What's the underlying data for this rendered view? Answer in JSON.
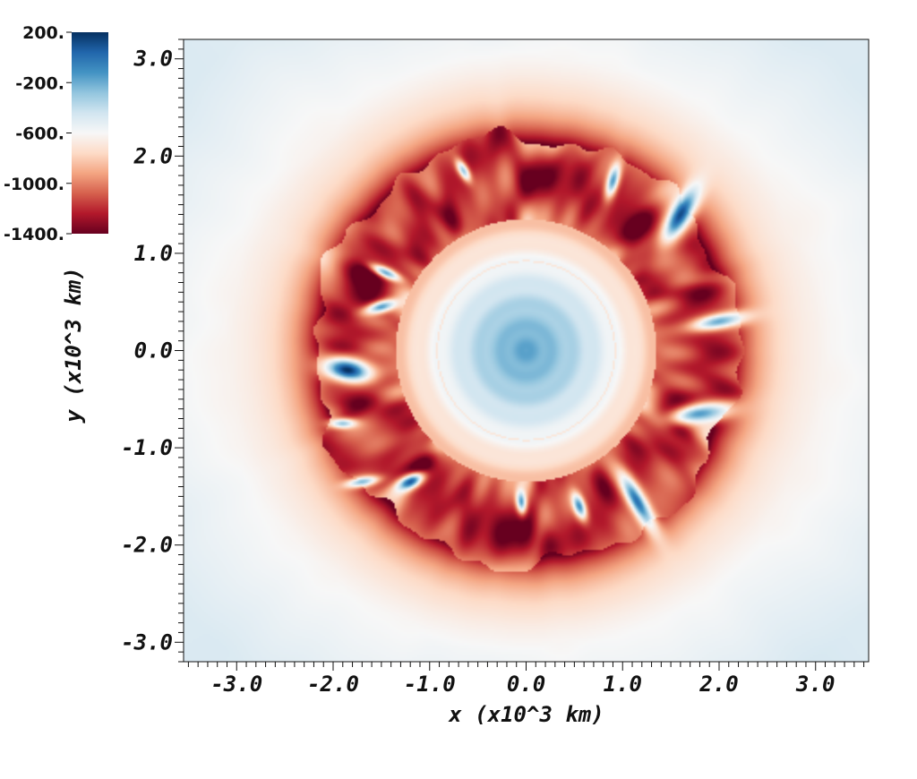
{
  "chart_data": {
    "type": "heatmap",
    "title": "",
    "xlabel": "x (x10^3 km)",
    "ylabel": "y (x10^3 km)",
    "xlim": [
      -3.55,
      3.55
    ],
    "ylim": [
      -3.2,
      3.2
    ],
    "x_ticks": [
      -3.0,
      -2.0,
      -1.0,
      0.0,
      1.0,
      2.0,
      3.0
    ],
    "x_tick_labels": [
      "-3.0",
      "-2.0",
      "-1.0",
      "0.0",
      "1.0",
      "2.0",
      "3.0"
    ],
    "y_ticks": [
      -3.0,
      -2.0,
      -1.0,
      0.0,
      1.0,
      2.0,
      3.0
    ],
    "y_tick_labels": [
      "-3.0",
      "-2.0",
      "-1.0",
      "0.0",
      "1.0",
      "2.0",
      "3.0"
    ],
    "minor_ticks": true,
    "grid": false,
    "colorbar": {
      "placement": "top-left",
      "range": [
        -1400,
        200
      ],
      "ticks": [
        200,
        -200,
        -600,
        -1000,
        -1400
      ],
      "tick_labels": [
        "200.",
        "-200.",
        "-600.",
        "-1000.",
        "-1400."
      ],
      "colormap": "RdBu",
      "colors": [
        "#67001f",
        "#b2182b",
        "#d6604d",
        "#f4a582",
        "#fddbc7",
        "#f7f7f7",
        "#d1e5f0",
        "#92c5de",
        "#4393c3",
        "#2166ac",
        "#053061"
      ]
    },
    "field": {
      "description_values": {
        "core_radius": 1.35,
        "core_center_value": -180,
        "core_shell_value": -850,
        "shock_radius": 2.2,
        "disturbed_band_value": -1250,
        "outer_value_near_edge": -450,
        "background_value": -600
      },
      "blue_plumes": [
        {
          "x": 1.6,
          "y": 1.4,
          "a": 0.32,
          "b": 0.11,
          "angle_deg": 60,
          "value": 120
        },
        {
          "x": 2.0,
          "y": 0.3,
          "a": 0.3,
          "b": 0.08,
          "angle_deg": 10,
          "value": -200
        },
        {
          "x": 1.8,
          "y": -0.65,
          "a": 0.33,
          "b": 0.1,
          "angle_deg": 8,
          "value": -150
        },
        {
          "x": 1.15,
          "y": -1.55,
          "a": 0.35,
          "b": 0.09,
          "angle_deg": -60,
          "value": 0
        },
        {
          "x": 0.55,
          "y": -1.6,
          "a": 0.14,
          "b": 0.06,
          "angle_deg": -70,
          "value": -100
        },
        {
          "x": -0.05,
          "y": -1.55,
          "a": 0.12,
          "b": 0.05,
          "angle_deg": -85,
          "value": -150
        },
        {
          "x": -1.2,
          "y": -1.35,
          "a": 0.15,
          "b": 0.07,
          "angle_deg": 25,
          "value": 80
        },
        {
          "x": -1.7,
          "y": -1.35,
          "a": 0.17,
          "b": 0.05,
          "angle_deg": 10,
          "value": -250
        },
        {
          "x": -1.85,
          "y": -0.2,
          "a": 0.25,
          "b": 0.12,
          "angle_deg": -10,
          "value": 200
        },
        {
          "x": -1.5,
          "y": 0.45,
          "a": 0.17,
          "b": 0.06,
          "angle_deg": 15,
          "value": -150
        },
        {
          "x": -1.45,
          "y": 0.8,
          "a": 0.16,
          "b": 0.05,
          "angle_deg": -25,
          "value": -200
        },
        {
          "x": 0.9,
          "y": 1.75,
          "a": 0.18,
          "b": 0.06,
          "angle_deg": 75,
          "value": -150
        },
        {
          "x": -0.65,
          "y": 1.85,
          "a": 0.12,
          "b": 0.05,
          "angle_deg": -60,
          "value": -300
        },
        {
          "x": -1.9,
          "y": -0.75,
          "a": 0.14,
          "b": 0.05,
          "angle_deg": 0,
          "value": -300
        }
      ]
    }
  }
}
